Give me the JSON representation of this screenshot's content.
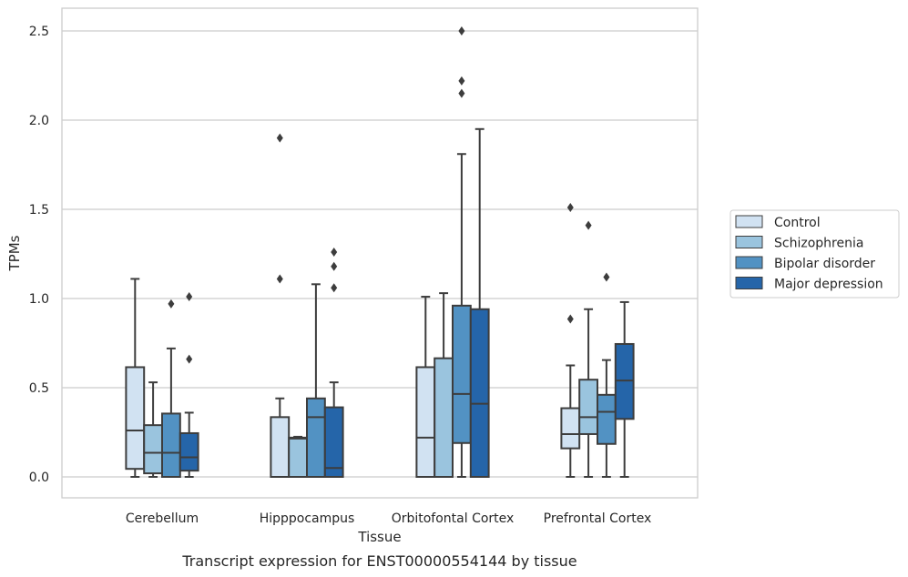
{
  "chart_data": {
    "type": "box",
    "title": "",
    "caption": "Transcript expression for ENST00000554144 by tissue",
    "xlabel": "Tissue",
    "ylabel": "TPMs",
    "ylim": [
      -0.12,
      2.63
    ],
    "yticks": [
      "0.0",
      "0.5",
      "1.0",
      "1.5",
      "2.0",
      "2.5"
    ],
    "grid": "horizontal",
    "legend_position": "right",
    "categories": [
      "Cerebellum",
      "Hipppocampus",
      "Orbitofontal Cortex",
      "Prefrontal Cortex"
    ],
    "series": [
      {
        "name": "Control",
        "color": "#d1e2f2",
        "boxes": [
          {
            "whislo": 0.0,
            "q1": 0.045,
            "med": 0.26,
            "q3": 0.615,
            "whishi": 1.11,
            "fliers": []
          },
          {
            "whislo": 0.0,
            "q1": 0.0,
            "med": 0.0,
            "q3": 0.335,
            "whishi": 0.44,
            "fliers": [
              1.11,
              1.9
            ]
          },
          {
            "whislo": 0.0,
            "q1": 0.0,
            "med": 0.22,
            "q3": 0.615,
            "whishi": 1.01,
            "fliers": []
          },
          {
            "whislo": 0.0,
            "q1": 0.16,
            "med": 0.24,
            "q3": 0.385,
            "whishi": 0.625,
            "fliers": [
              0.885,
              1.51
            ]
          }
        ]
      },
      {
        "name": "Schizophrenia",
        "color": "#9ac4de",
        "boxes": [
          {
            "whislo": 0.0,
            "q1": 0.02,
            "med": 0.135,
            "q3": 0.29,
            "whishi": 0.53,
            "fliers": []
          },
          {
            "whislo": 0.0,
            "q1": 0.0,
            "med": 0.215,
            "q3": 0.22,
            "whishi": 0.225,
            "fliers": []
          },
          {
            "whislo": 0.0,
            "q1": 0.0,
            "med": 0.0,
            "q3": 0.665,
            "whishi": 1.03,
            "fliers": []
          },
          {
            "whislo": 0.0,
            "q1": 0.24,
            "med": 0.335,
            "q3": 0.545,
            "whishi": 0.94,
            "fliers": [
              1.41
            ]
          }
        ]
      },
      {
        "name": "Bipolar disorder",
        "color": "#5292c3",
        "boxes": [
          {
            "whislo": 0.0,
            "q1": 0.0,
            "med": 0.135,
            "q3": 0.355,
            "whishi": 0.72,
            "fliers": [
              0.97
            ]
          },
          {
            "whislo": 0.0,
            "q1": 0.0,
            "med": 0.335,
            "q3": 0.44,
            "whishi": 1.08,
            "fliers": []
          },
          {
            "whislo": 0.0,
            "q1": 0.19,
            "med": 0.465,
            "q3": 0.96,
            "whishi": 1.81,
            "fliers": [
              2.15,
              2.22,
              2.5
            ]
          },
          {
            "whislo": 0.0,
            "q1": 0.185,
            "med": 0.365,
            "q3": 0.46,
            "whishi": 0.655,
            "fliers": [
              1.12
            ]
          }
        ]
      },
      {
        "name": "Major depression",
        "color": "#2565a9",
        "boxes": [
          {
            "whislo": 0.0,
            "q1": 0.035,
            "med": 0.11,
            "q3": 0.245,
            "whishi": 0.36,
            "fliers": [
              0.66,
              1.01
            ]
          },
          {
            "whislo": 0.0,
            "q1": 0.0,
            "med": 0.05,
            "q3": 0.39,
            "whishi": 0.53,
            "fliers": [
              1.06,
              1.18,
              1.26
            ]
          },
          {
            "whislo": 0.0,
            "q1": 0.0,
            "med": 0.41,
            "q3": 0.94,
            "whishi": 1.95,
            "fliers": []
          },
          {
            "whislo": 0.0,
            "q1": 0.325,
            "med": 0.54,
            "q3": 0.745,
            "whishi": 0.98,
            "fliers": []
          }
        ]
      }
    ]
  }
}
